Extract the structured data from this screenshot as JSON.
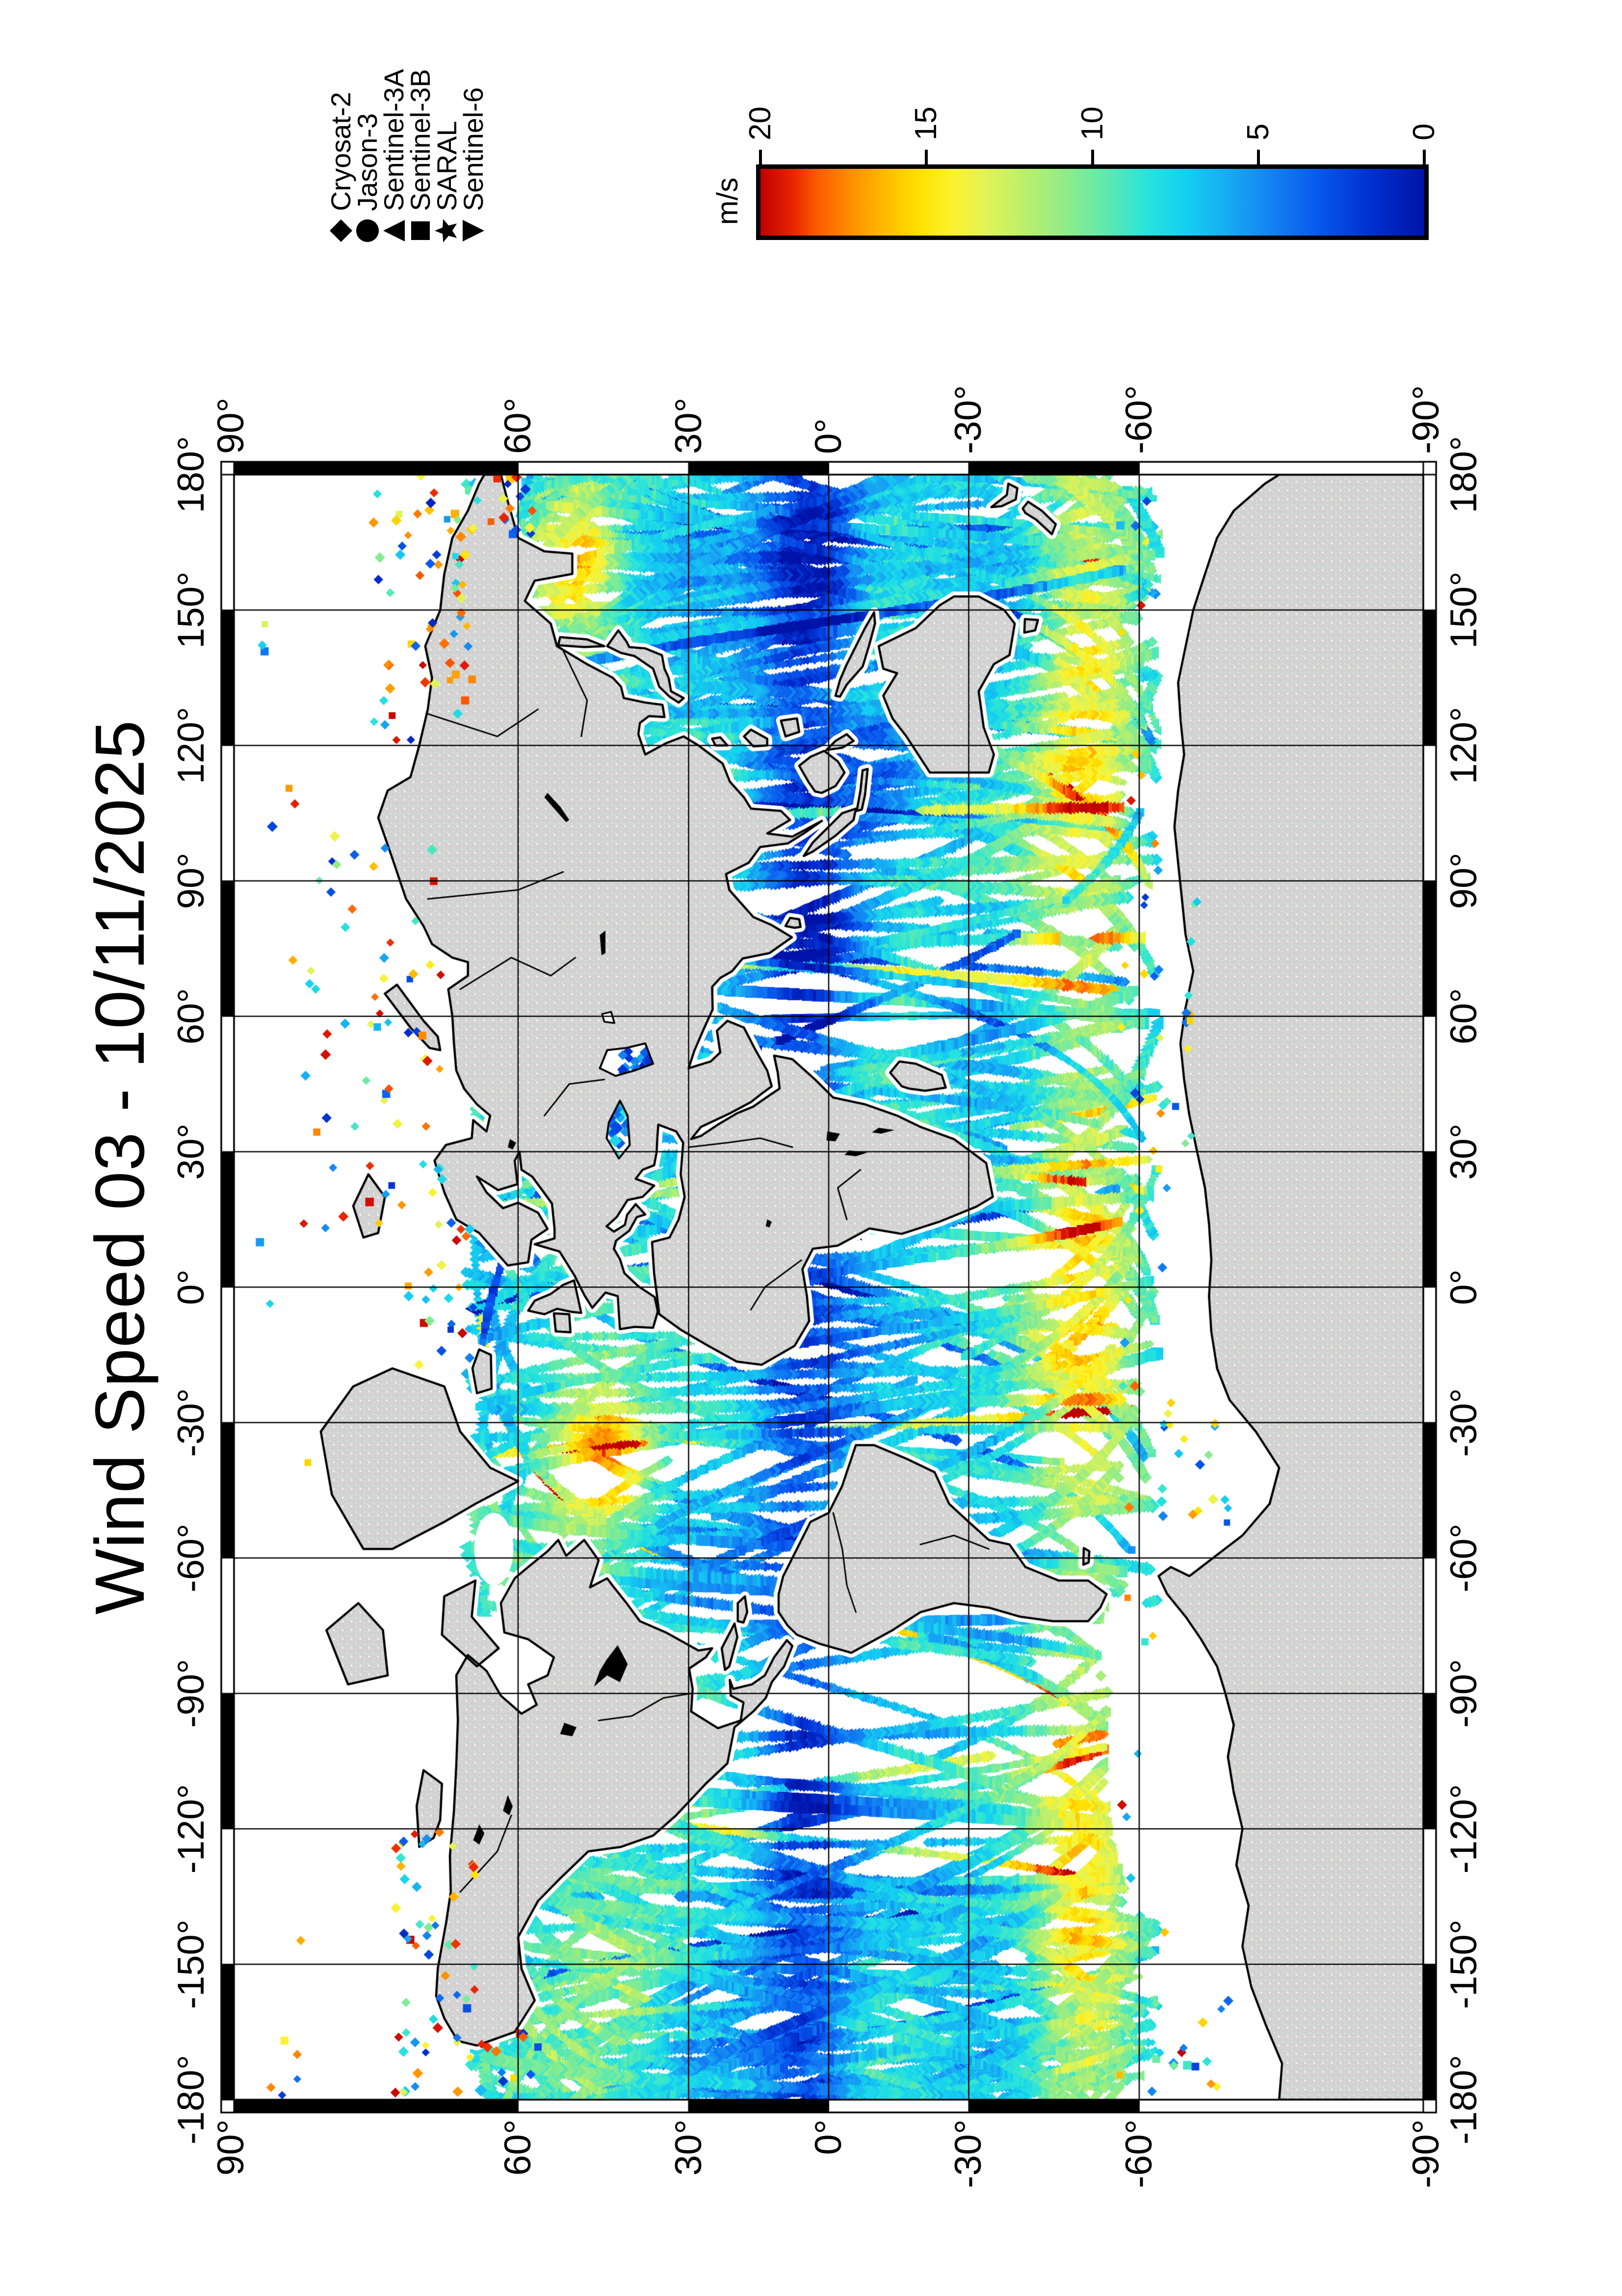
{
  "figure": {
    "title": "Wind Speed 03 - 10/11/2025",
    "background": "#ffffff"
  },
  "legend": {
    "items": [
      {
        "label": "Cryosat-2",
        "symbol": "diamond"
      },
      {
        "label": "Jason-3",
        "symbol": "circle"
      },
      {
        "label": "Sentinel-3A",
        "symbol": "triangle-up"
      },
      {
        "label": "Sentinel-3B",
        "symbol": "square"
      },
      {
        "label": "SARAL",
        "symbol": "star"
      },
      {
        "label": "Sentinel-6",
        "symbol": "triangle-down"
      }
    ]
  },
  "colorbar": {
    "unit": "m/s",
    "min": 0,
    "max": 20,
    "tick_labels": [
      "20",
      "15",
      "10",
      "5",
      "0"
    ],
    "tick_values": [
      20,
      15,
      10,
      5,
      0
    ],
    "stops": [
      {
        "value": 20,
        "color": "#c00000"
      },
      {
        "value": 19,
        "color": "#ea2500"
      },
      {
        "value": 18.3,
        "color": "#fb5b00"
      },
      {
        "value": 17.3,
        "color": "#ff8d00"
      },
      {
        "value": 16.3,
        "color": "#ffb800"
      },
      {
        "value": 15.2,
        "color": "#ffe100"
      },
      {
        "value": 14.2,
        "color": "#fbf32e"
      },
      {
        "value": 13.2,
        "color": "#e2f355"
      },
      {
        "value": 12.0,
        "color": "#baef6c"
      },
      {
        "value": 10.8,
        "color": "#8fec89"
      },
      {
        "value": 9.6,
        "color": "#5fe9ae"
      },
      {
        "value": 8.4,
        "color": "#2ae4da"
      },
      {
        "value": 7.2,
        "color": "#14d0f0"
      },
      {
        "value": 6.0,
        "color": "#17aef2"
      },
      {
        "value": 4.8,
        "color": "#1488f2"
      },
      {
        "value": 3.2,
        "color": "#0858ee"
      },
      {
        "value": 1.6,
        "color": "#0030d0"
      },
      {
        "value": 0,
        "color": "#0013a8"
      }
    ]
  },
  "axes": {
    "lon_labels": [
      "180°",
      "150°",
      "120°",
      "90°",
      "60°",
      "30°",
      "0°",
      "-30°",
      "-60°",
      "-90°",
      "-120°",
      "-150°",
      "-180°"
    ],
    "lon_values": [
      180,
      150,
      120,
      90,
      60,
      30,
      0,
      -30,
      -60,
      -90,
      -120,
      -150,
      -180
    ],
    "lat_labels": [
      "90°",
      "60°",
      "30°",
      "0°",
      "-30°",
      "-60°",
      "-90°"
    ],
    "lat_values": [
      90,
      60,
      30,
      0,
      -30,
      -60,
      -90
    ],
    "grid_interval_deg": 30
  },
  "map": {
    "projection": "Miller cylindrical",
    "land_color": "#d2d2d2",
    "coast_color": "#000000",
    "no_data_color": "#ffffff",
    "grid_color": "#000000"
  }
}
